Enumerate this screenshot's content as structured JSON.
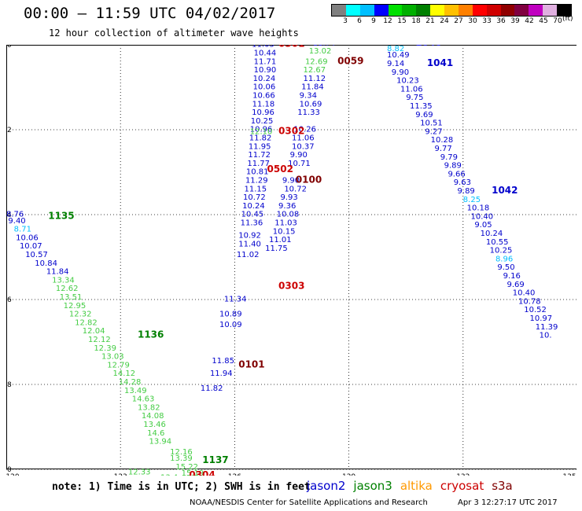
{
  "title": "00:00 – 11:59 UTC 04/02/2017",
  "subtitle": "12 hour collection of altimeter wave heights",
  "legend": {
    "colors": [
      "#808080",
      "#00ffff",
      "#00bfff",
      "#0000ff",
      "#00e000",
      "#00b000",
      "#008000",
      "#ffff00",
      "#ffc000",
      "#ff8000",
      "#ff0000",
      "#d00000",
      "#900000",
      "#800040",
      "#c000c0",
      "#e0b0e0",
      "#000000"
    ],
    "labels": [
      "3",
      "6",
      "9",
      "12",
      "15",
      "18",
      "21",
      "24",
      "27",
      "30",
      "33",
      "36",
      "39",
      "42",
      "45",
      "70"
    ],
    "unit": "(ft)"
  },
  "map": {
    "lon_range": [
      120,
      135
    ],
    "lat_range": [
      -50,
      -40
    ],
    "lon_ticks": [
      "120",
      "123",
      "126",
      "129",
      "132",
      "135"
    ],
    "lat_ticks": [
      "-40",
      "-42",
      "-44",
      "-46",
      "-48",
      "-50"
    ],
    "grid": true
  },
  "series": [
    {
      "sat": "jason2",
      "color": "#0000cc",
      "obs": [
        [
          "11.05",
          126.45,
          -40.05
        ],
        [
          "10.44",
          126.5,
          -40.25
        ],
        [
          "11.71",
          126.5,
          -40.45
        ],
        [
          "10.90",
          126.5,
          -40.65
        ],
        [
          "10.24",
          126.48,
          -40.85
        ],
        [
          "10.06",
          126.48,
          -41.05
        ],
        [
          "10.66",
          126.47,
          -41.25
        ],
        [
          "11.18",
          126.46,
          -41.45
        ],
        [
          "10.96",
          126.45,
          -41.65
        ],
        [
          "10.25",
          126.42,
          -41.85
        ],
        [
          "10.96",
          126.4,
          -42.05
        ],
        [
          "11.82",
          126.38,
          -42.25
        ],
        [
          "11.95",
          126.36,
          -42.45
        ],
        [
          "11.72",
          126.35,
          -42.65
        ],
        [
          "11.77",
          126.33,
          -42.85
        ],
        [
          "10.81",
          126.3,
          -43.05
        ],
        [
          "11.29",
          126.28,
          -43.25
        ],
        [
          "11.15",
          126.25,
          -43.45
        ],
        [
          "10.72",
          126.22,
          -43.65
        ],
        [
          "10.24",
          126.2,
          -43.85
        ],
        [
          "10.45",
          126.17,
          -44.05
        ],
        [
          "11.36",
          126.15,
          -44.25
        ],
        [
          "10.92",
          126.1,
          -44.55
        ],
        [
          "11.40",
          126.1,
          -44.75
        ],
        [
          "11.02",
          126.05,
          -45.0
        ],
        [
          "11.34",
          125.72,
          -46.05
        ],
        [
          "10.89",
          125.6,
          -46.4
        ],
        [
          "10.09",
          125.6,
          -46.65
        ],
        [
          "11.85",
          125.4,
          -47.5
        ],
        [
          "11.94",
          125.35,
          -47.8
        ],
        [
          "11.82",
          125.1,
          -48.15
        ],
        [
          "11.74",
          128.05,
          -40.02
        ],
        [
          "10.49",
          130.0,
          -40.3
        ],
        [
          "9.14",
          130.0,
          -40.5
        ],
        [
          "9.90",
          130.12,
          -40.7
        ],
        [
          "10.23",
          130.25,
          -40.9
        ],
        [
          "11.06",
          130.35,
          -41.1
        ],
        [
          "9.75",
          130.5,
          -41.3
        ],
        [
          "11.35",
          130.6,
          -41.5
        ],
        [
          "9.69",
          130.75,
          -41.7
        ],
        [
          "10.51",
          130.87,
          -41.9
        ],
        [
          "9.27",
          131.0,
          -42.1
        ],
        [
          "10.28",
          131.15,
          -42.3
        ],
        [
          "9.77",
          131.25,
          -42.5
        ],
        [
          "9.79",
          131.4,
          -42.7
        ],
        [
          "9.89",
          131.5,
          -42.9
        ],
        [
          "9.66",
          131.6,
          -43.1
        ],
        [
          "9.63",
          131.75,
          -43.3
        ],
        [
          "9.89",
          131.85,
          -43.5
        ],
        [
          "10.18",
          132.1,
          -43.9
        ],
        [
          "10.40",
          132.2,
          -44.1
        ],
        [
          "9.05",
          132.3,
          -44.3
        ],
        [
          "10.24",
          132.45,
          -44.5
        ],
        [
          "10.55",
          132.6,
          -44.7
        ],
        [
          "10.25",
          132.7,
          -44.9
        ],
        [
          "9.50",
          132.9,
          -45.3
        ],
        [
          "9.16",
          133.05,
          -45.5
        ],
        [
          "9.69",
          133.15,
          -45.7
        ],
        [
          "10.40",
          133.3,
          -45.9
        ],
        [
          "10.78",
          133.45,
          -46.1
        ],
        [
          "10.52",
          133.6,
          -46.3
        ],
        [
          "10.97",
          133.75,
          -46.5
        ],
        [
          "11.39",
          133.9,
          -46.7
        ],
        [
          "10.",
          134.0,
          -46.9
        ],
        [
          "10.26",
          127.55,
          -42.05
        ],
        [
          "11.06",
          127.5,
          -42.25
        ],
        [
          "10.37",
          127.5,
          -42.45
        ],
        [
          "9.90",
          127.45,
          -42.65
        ],
        [
          "10.71",
          127.4,
          -42.85
        ],
        [
          "9.90",
          127.25,
          -43.25
        ],
        [
          "10.72",
          127.3,
          -43.45
        ],
        [
          "9.93",
          127.2,
          -43.65
        ],
        [
          "9.36",
          127.15,
          -43.85
        ],
        [
          "10.08",
          127.1,
          -44.05
        ],
        [
          "11.03",
          127.05,
          -44.25
        ],
        [
          "10.15",
          127.0,
          -44.45
        ],
        [
          "11.01",
          126.9,
          -44.65
        ],
        [
          "11.75",
          126.8,
          -44.85
        ],
        [
          "11.12",
          127.8,
          -40.85
        ],
        [
          "11.84",
          127.75,
          -41.05
        ],
        [
          "9.34",
          127.7,
          -41.25
        ],
        [
          "10.69",
          127.7,
          -41.45
        ],
        [
          "11.33",
          127.65,
          -41.65
        ],
        [
          "8.76",
          120.0,
          -44.05
        ],
        [
          "9.40",
          120.05,
          -44.2
        ],
        [
          "10.06",
          120.25,
          -44.6
        ],
        [
          "10.07",
          120.35,
          -44.8
        ],
        [
          "10.57",
          120.5,
          -45.0
        ],
        [
          "10.84",
          120.75,
          -45.2
        ],
        [
          "11.84",
          121.05,
          -45.4
        ]
      ]
    },
    {
      "sat": "jason2-cyan",
      "color": "#00bfff",
      "obs": [
        [
          "8.71",
          120.2,
          -44.4
        ],
        [
          "8.82",
          130.0,
          -40.15
        ],
        [
          "8.25",
          132.0,
          -43.7
        ],
        [
          "8.96",
          132.85,
          -45.1
        ]
      ]
    },
    {
      "sat": "jason3",
      "color": "#44cc44",
      "obs": [
        [
          "13.02",
          127.95,
          -40.2
        ],
        [
          "12.69",
          127.85,
          -40.45
        ],
        [
          "12.67",
          127.8,
          -40.65
        ],
        [
          "12.10",
          126.4,
          -42.1
        ],
        [
          "13.34",
          121.2,
          -45.6
        ],
        [
          "12.62",
          121.3,
          -45.8
        ],
        [
          "13.51",
          121.4,
          -46.0
        ],
        [
          "12.95",
          121.5,
          -46.2
        ],
        [
          "12.32",
          121.65,
          -46.4
        ],
        [
          "12.82",
          121.8,
          -46.6
        ],
        [
          "12.04",
          122.0,
          -46.8
        ],
        [
          "12.12",
          122.15,
          -47.0
        ],
        [
          "12.39",
          122.3,
          -47.2
        ],
        [
          "13.03",
          122.5,
          -47.4
        ],
        [
          "12.79",
          122.65,
          -47.6
        ],
        [
          "14.12",
          122.8,
          -47.8
        ],
        [
          "14.28",
          122.95,
          -48.0
        ],
        [
          "13.49",
          123.1,
          -48.2
        ],
        [
          "14.63",
          123.3,
          -48.4
        ],
        [
          "13.82",
          123.45,
          -48.6
        ],
        [
          "14.08",
          123.55,
          -48.8
        ],
        [
          "13.46",
          123.6,
          -49.0
        ],
        [
          "14.6",
          123.7,
          -49.2
        ],
        [
          "13.94",
          123.75,
          -49.4
        ],
        [
          "12.16",
          124.3,
          -49.65
        ],
        [
          "13.39",
          124.3,
          -49.8
        ],
        [
          "15.22",
          124.45,
          -50.0
        ],
        [
          "12.33",
          123.2,
          -50.12
        ],
        [
          "13.4",
          124.05,
          -50.25
        ],
        [
          "14.04",
          123.65,
          -50.5
        ],
        [
          "12.92",
          123.2,
          -50.65
        ],
        [
          "15.27",
          124.65,
          -50.35
        ],
        [
          "15.91",
          124.85,
          -50.55
        ],
        [
          "15.19",
          124.6,
          -50.15
        ]
      ]
    }
  ],
  "track_labels": [
    {
      "text": "0301",
      "color": "#cc0000",
      "lon": 127.15,
      "lat": -40.05
    },
    {
      "text": "0058",
      "color": "#800000",
      "lon": 128.85,
      "lat": -40.0
    },
    {
      "text": "1040",
      "color": "#0000cc",
      "lon": 130.75,
      "lat": -40.02
    },
    {
      "text": "0059",
      "color": "#800000",
      "lon": 128.7,
      "lat": -40.45
    },
    {
      "text": "1041",
      "color": "#0000cc",
      "lon": 131.05,
      "lat": -40.5
    },
    {
      "text": "0302",
      "color": "#cc0000",
      "lon": 127.15,
      "lat": -42.1
    },
    {
      "text": "1042",
      "color": "#0000cc",
      "lon": 132.75,
      "lat": -43.5
    },
    {
      "text": "0502",
      "color": "#cc0000",
      "lon": 126.85,
      "lat": -43.0
    },
    {
      "text": "0100",
      "color": "#800000",
      "lon": 127.6,
      "lat": -43.25
    },
    {
      "text": "1135",
      "color": "#008000",
      "lon": 121.1,
      "lat": -44.1
    },
    {
      "text": "0303",
      "color": "#cc0000",
      "lon": 127.15,
      "lat": -45.75
    },
    {
      "text": "1136",
      "color": "#008000",
      "lon": 123.45,
      "lat": -46.9
    },
    {
      "text": "0101",
      "color": "#800000",
      "lon": 126.1,
      "lat": -47.6
    },
    {
      "text": "1137",
      "color": "#008000",
      "lon": 125.15,
      "lat": -49.85
    },
    {
      "text": "0304",
      "color": "#cc0000",
      "lon": 124.8,
      "lat": -50.2
    }
  ],
  "note": "note: 1) Time is in UTC; 2) SWH is in feet",
  "satellites": [
    {
      "name": "jason2",
      "color": "#0000cc"
    },
    {
      "name": "jason3",
      "color": "#008000"
    },
    {
      "name": "altika",
      "color": "#ff9900"
    },
    {
      "name": "cryosat",
      "color": "#cc0000"
    },
    {
      "name": "s3a",
      "color": "#800000"
    }
  ],
  "footer": {
    "center": "NOAA/NESDIS Center for Satellite Applications and Research",
    "right": "Apr  3 12:27:17 UTC 2017"
  }
}
